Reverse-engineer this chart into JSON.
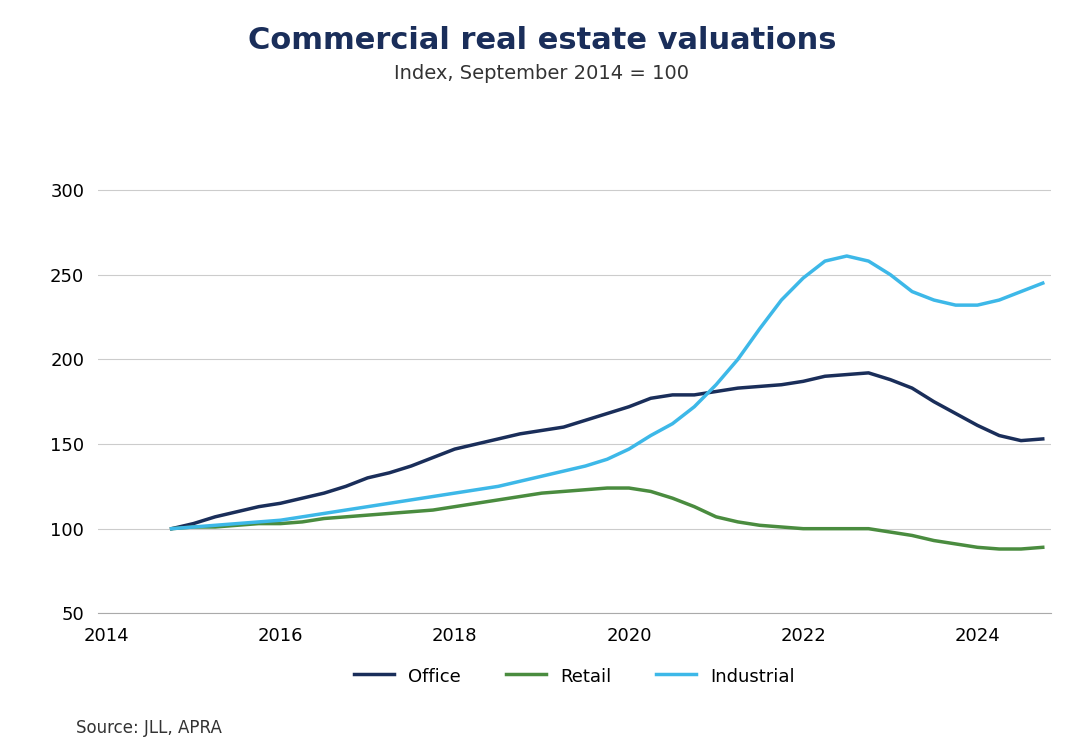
{
  "title": "Commercial real estate valuations",
  "subtitle": "Index, September 2014 = 100",
  "source": "Source: JLL, APRA",
  "title_color": "#1a2e5a",
  "subtitle_color": "#333333",
  "background_color": "#ffffff",
  "xlim": [
    2013.9,
    2024.85
  ],
  "ylim": [
    50,
    315
  ],
  "yticks": [
    50,
    100,
    150,
    200,
    250,
    300
  ],
  "xticks": [
    2014,
    2016,
    2018,
    2020,
    2022,
    2024
  ],
  "office_color": "#1a2e5a",
  "retail_color": "#4a8c3f",
  "industrial_color": "#3db8e8",
  "line_width": 2.5,
  "years": [
    2014.75,
    2015.0,
    2015.25,
    2015.5,
    2015.75,
    2016.0,
    2016.25,
    2016.5,
    2016.75,
    2017.0,
    2017.25,
    2017.5,
    2017.75,
    2018.0,
    2018.25,
    2018.5,
    2018.75,
    2019.0,
    2019.25,
    2019.5,
    2019.75,
    2020.0,
    2020.25,
    2020.5,
    2020.75,
    2021.0,
    2021.25,
    2021.5,
    2021.75,
    2022.0,
    2022.25,
    2022.5,
    2022.75,
    2023.0,
    2023.25,
    2023.5,
    2023.75,
    2024.0,
    2024.25,
    2024.5,
    2024.75
  ],
  "office": [
    100,
    103,
    107,
    110,
    113,
    115,
    118,
    121,
    125,
    130,
    133,
    137,
    142,
    147,
    150,
    153,
    156,
    158,
    160,
    164,
    168,
    172,
    177,
    179,
    179,
    181,
    183,
    184,
    185,
    187,
    190,
    191,
    192,
    188,
    183,
    175,
    168,
    161,
    155,
    152,
    153
  ],
  "retail": [
    100,
    101,
    101,
    102,
    103,
    103,
    104,
    106,
    107,
    108,
    109,
    110,
    111,
    113,
    115,
    117,
    119,
    121,
    122,
    123,
    124,
    124,
    122,
    118,
    113,
    107,
    104,
    102,
    101,
    100,
    100,
    100,
    100,
    98,
    96,
    93,
    91,
    89,
    88,
    88,
    89
  ],
  "industrial": [
    100,
    101,
    102,
    103,
    104,
    105,
    107,
    109,
    111,
    113,
    115,
    117,
    119,
    121,
    123,
    125,
    128,
    131,
    134,
    137,
    141,
    147,
    155,
    162,
    172,
    185,
    200,
    218,
    235,
    248,
    258,
    261,
    258,
    250,
    240,
    235,
    232,
    232,
    235,
    240,
    245
  ]
}
